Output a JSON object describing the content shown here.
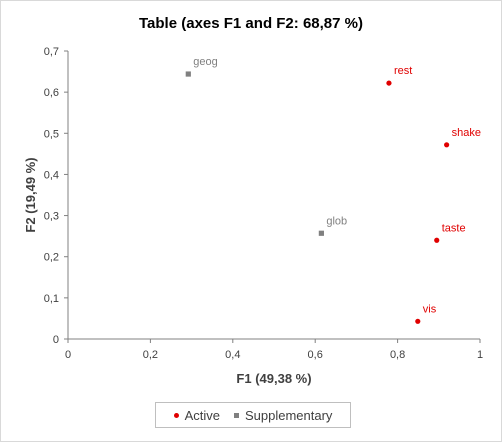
{
  "chart_data": {
    "type": "scatter",
    "title": "Table (axes F1 and F2: 68,87 %)",
    "xlabel": "F1 (49,38 %)",
    "ylabel": "F2 (19,49 %)",
    "xlim": [
      0,
      1
    ],
    "ylim": [
      0,
      0.7
    ],
    "x_ticks": [
      "0",
      "0,2",
      "0,4",
      "0,6",
      "0,8",
      "1"
    ],
    "y_ticks": [
      "0",
      "0,1",
      "0,2",
      "0,3",
      "0,4",
      "0,5",
      "0,6",
      "0,7"
    ],
    "legend_position": "bottom",
    "series": [
      {
        "name": "Active",
        "color": "#e00000",
        "marker": "circle",
        "points": [
          {
            "label": "rest",
            "x": 0.779,
            "y": 0.622
          },
          {
            "label": "shake",
            "x": 0.919,
            "y": 0.472
          },
          {
            "label": "taste",
            "x": 0.895,
            "y": 0.24
          },
          {
            "label": "vis",
            "x": 0.849,
            "y": 0.043
          }
        ]
      },
      {
        "name": "Supplementary",
        "color": "#808080",
        "marker": "square",
        "points": [
          {
            "label": "geog",
            "x": 0.292,
            "y": 0.644
          },
          {
            "label": "glob",
            "x": 0.615,
            "y": 0.257
          }
        ]
      }
    ]
  }
}
